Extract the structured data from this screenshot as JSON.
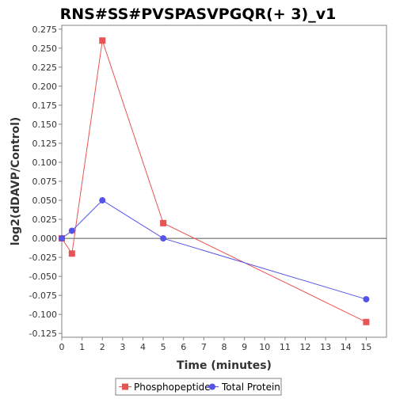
{
  "chart_data": {
    "type": "line",
    "title": "RNS#SS#PVSPASVPGQR(+ 3)_v1",
    "xlabel": "Time (minutes)",
    "ylabel": "log2(dDAVP/Control)",
    "xlim": [
      0,
      16
    ],
    "ylim": [
      -0.13,
      0.28
    ],
    "x_ticks": [
      0,
      1,
      2,
      3,
      4,
      5,
      6,
      7,
      8,
      9,
      10,
      11,
      12,
      13,
      14,
      15
    ],
    "y_ticks": [
      -0.125,
      -0.1,
      -0.075,
      -0.05,
      -0.025,
      0.0,
      0.025,
      0.05,
      0.075,
      0.1,
      0.125,
      0.15,
      0.175,
      0.2,
      0.225,
      0.25,
      0.275
    ],
    "y_tick_labels": [
      "-0.125",
      "-0.100",
      "-0.075",
      "-0.050",
      "-0.025",
      "0.000",
      "0.025",
      "0.050",
      "0.075",
      "0.100",
      "0.125",
      "0.150",
      "0.175",
      "0.200",
      "0.225",
      "0.250",
      "0.275"
    ],
    "zero_line": true,
    "grid": false,
    "legend_position": "bottom",
    "series": [
      {
        "name": "Phosphopeptide",
        "color": "#e85454",
        "marker": "square",
        "x": [
          0,
          0.5,
          2,
          5,
          15
        ],
        "y": [
          0.0,
          -0.02,
          0.26,
          0.02,
          -0.11
        ]
      },
      {
        "name": "Total Protein",
        "color": "#5454e8",
        "marker": "circle",
        "x": [
          0,
          0.5,
          2,
          5,
          15
        ],
        "y": [
          0.0,
          0.01,
          0.05,
          0.0,
          -0.08
        ]
      }
    ]
  }
}
